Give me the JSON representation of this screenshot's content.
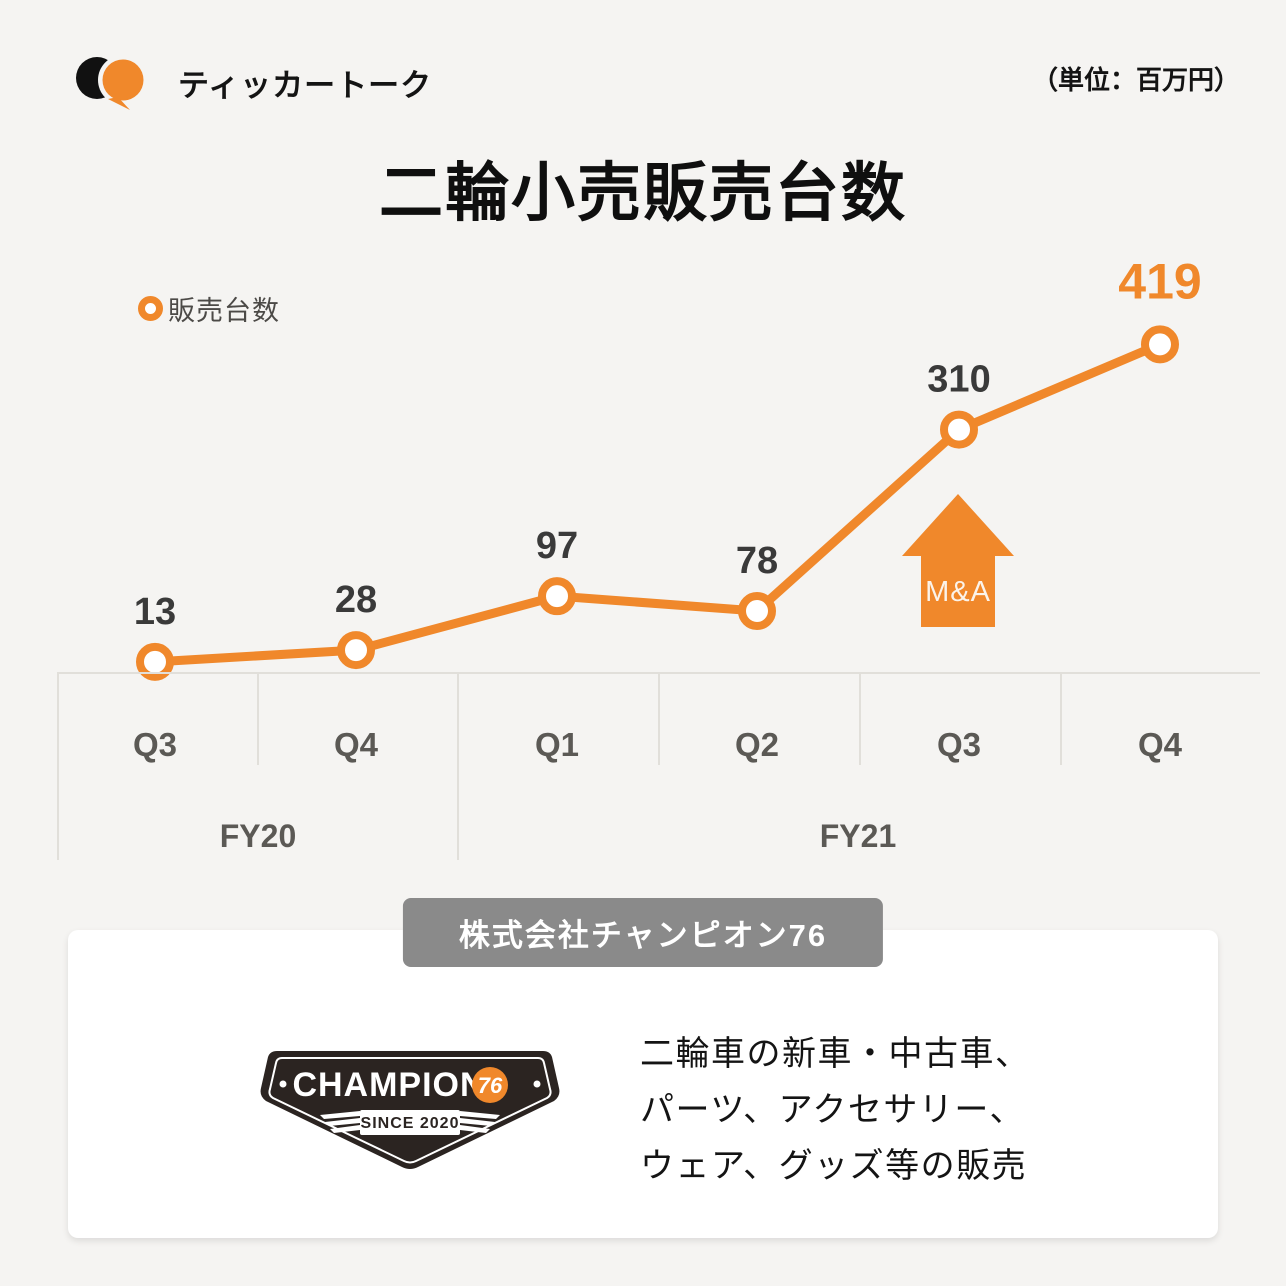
{
  "header": {
    "brand": "ティッカートーク",
    "unit_note": "（単位：百万円）"
  },
  "title": "二輪小売販売台数",
  "legend": {
    "label": "販売台数"
  },
  "chart_data": {
    "type": "line",
    "title": "二輪小売販売台数",
    "unit": "百万円",
    "categories": [
      "Q3",
      "Q4",
      "Q1",
      "Q2",
      "Q3",
      "Q4"
    ],
    "fiscal_years": [
      {
        "label": "FY20",
        "quarters": [
          "Q3",
          "Q4"
        ]
      },
      {
        "label": "FY21",
        "quarters": [
          "Q1",
          "Q2",
          "Q3",
          "Q4"
        ]
      }
    ],
    "series": [
      {
        "name": "販売台数",
        "values": [
          13,
          28,
          97,
          78,
          310,
          419
        ]
      }
    ],
    "annotation": {
      "label": "M&A",
      "at_category_index": 4
    },
    "line_color": "#F0882B",
    "highlight_last_value": true,
    "grid": "quarter-separators",
    "legend_position": "top-left"
  },
  "company_card": {
    "company_name": "株式会社チャンピオン76",
    "logo": {
      "name": "CHAMPION",
      "number": "76",
      "since": "SINCE 2020"
    },
    "description_lines": [
      "二輪車の新車・中古車、",
      "パーツ、アクセサリー、",
      "ウェア、グッズ等の販売"
    ]
  },
  "colors": {
    "accent_orange": "#F0882B",
    "background": "#f5f4f2",
    "dark_text": "#141414",
    "value_label": "#3a3a3a",
    "axis_text": "#5b5955",
    "axis_line": "#e1dfda",
    "badge_gray": "#8a8a8a",
    "card_white": "#ffffff",
    "logo_dark": "#2b2421"
  }
}
